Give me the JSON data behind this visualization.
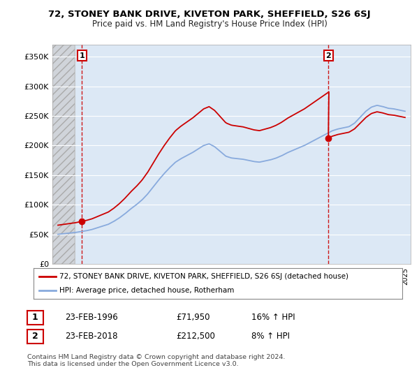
{
  "title": "72, STONEY BANK DRIVE, KIVETON PARK, SHEFFIELD, S26 6SJ",
  "subtitle": "Price paid vs. HM Land Registry's House Price Index (HPI)",
  "ylabel_values": [
    "£0",
    "£50K",
    "£100K",
    "£150K",
    "£200K",
    "£250K",
    "£300K",
    "£350K"
  ],
  "yticks": [
    0,
    50000,
    100000,
    150000,
    200000,
    250000,
    300000,
    350000
  ],
  "ylim": [
    0,
    370000
  ],
  "xlim_start": 1993.5,
  "xlim_end": 2025.5,
  "point1_year": 1996.15,
  "point1_value": 71950,
  "point2_year": 2018.15,
  "point2_value": 212500,
  "vline1_year": 1996.15,
  "vline2_year": 2018.15,
  "sale_color": "#cc0000",
  "hpi_color": "#88aadd",
  "legend_sale_label": "72, STONEY BANK DRIVE, KIVETON PARK, SHEFFIELD, S26 6SJ (detached house)",
  "legend_hpi_label": "HPI: Average price, detached house, Rotherham",
  "table_row1": [
    "1",
    "23-FEB-1996",
    "£71,950",
    "16% ↑ HPI"
  ],
  "table_row2": [
    "2",
    "23-FEB-2018",
    "£212,500",
    "8% ↑ HPI"
  ],
  "footer": "Contains HM Land Registry data © Crown copyright and database right 2024.\nThis data is licensed under the Open Government Licence v3.0.",
  "background_color": "#dce8f5",
  "hatch_color": "#c8c8c8",
  "grid_color": "#ffffff",
  "box_color": "#cc0000"
}
